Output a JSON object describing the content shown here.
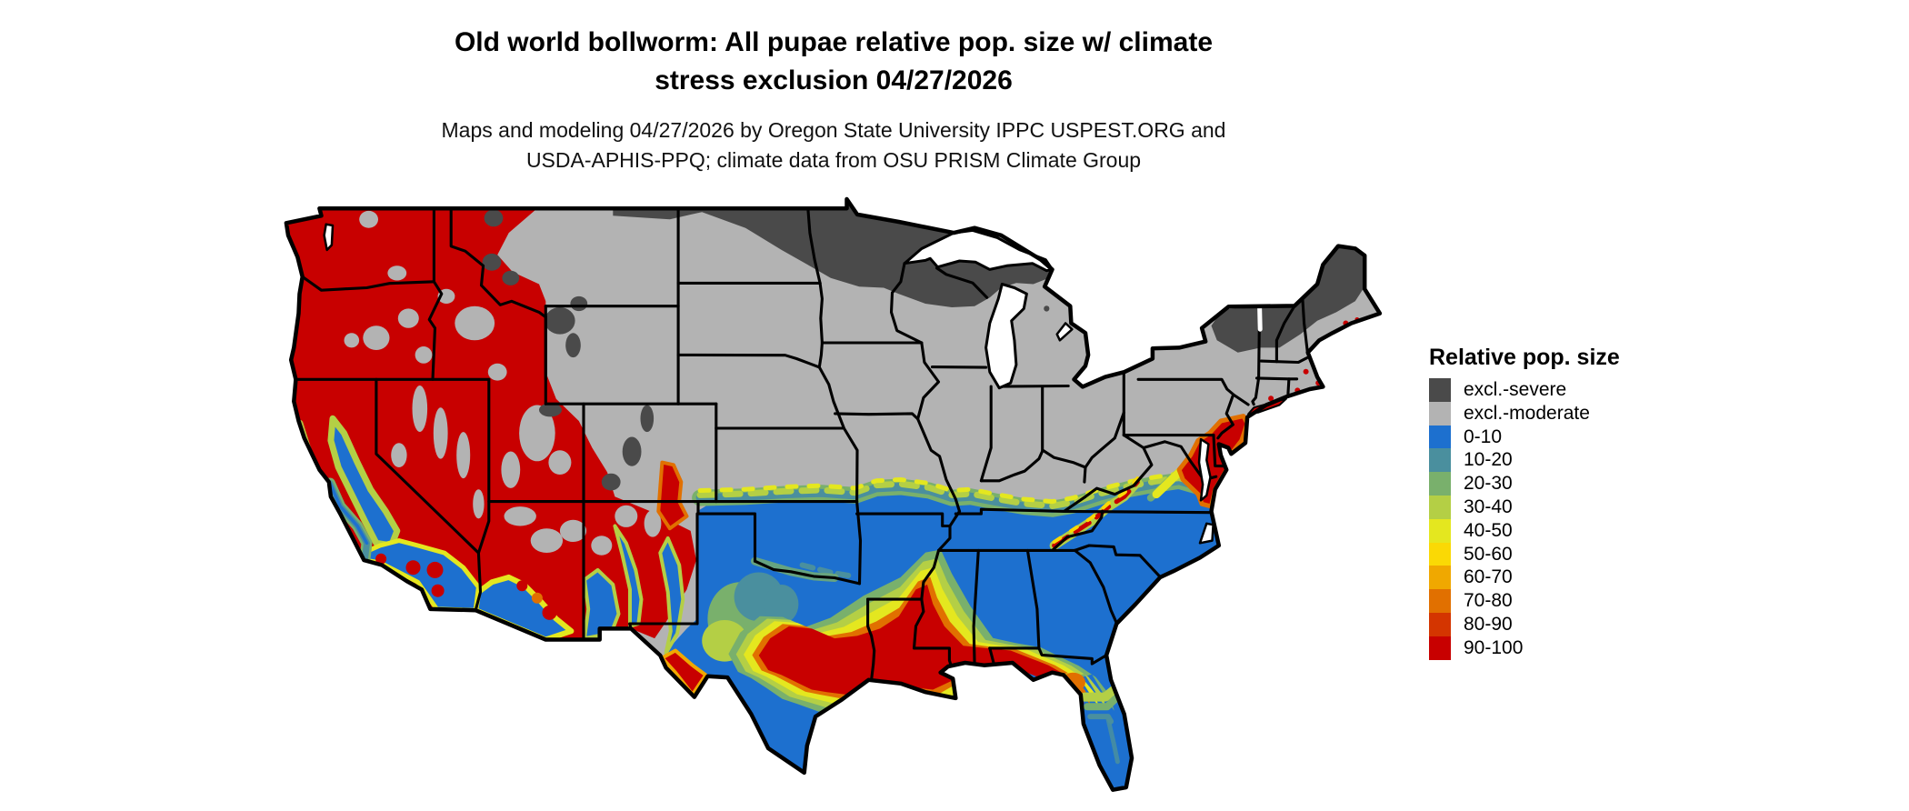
{
  "title": {
    "line1": "Old world bollworm: All pupae relative pop. size w/ climate",
    "line2": "stress exclusion 04/27/2026"
  },
  "subtitle": {
    "line1": "Maps and modeling 04/27/2026 by Oregon State University IPPC USPEST.ORG and",
    "line2": "USDA-APHIS-PPQ; climate data from OSU PRISM Climate Group"
  },
  "legend": {
    "title": "Relative pop. size",
    "items": [
      {
        "label": "excl.-severe",
        "color": "#4a4a4a"
      },
      {
        "label": "excl.-moderate",
        "color": "#b3b3b3"
      },
      {
        "label": "0-10",
        "color": "#1d70cf"
      },
      {
        "label": "10-20",
        "color": "#4a8f9e"
      },
      {
        "label": "20-30",
        "color": "#79b06c"
      },
      {
        "label": "30-40",
        "color": "#b4cf45"
      },
      {
        "label": "40-50",
        "color": "#e4e71f"
      },
      {
        "label": "50-60",
        "color": "#fad905"
      },
      {
        "label": "60-70",
        "color": "#f0a800"
      },
      {
        "label": "70-80",
        "color": "#e17000"
      },
      {
        "label": "80-90",
        "color": "#d43500"
      },
      {
        "label": "90-100",
        "color": "#c80000"
      }
    ]
  },
  "map": {
    "background": "#ffffff",
    "land_default": "#b3b3b3",
    "border_color": "#000000",
    "water_color": "#ffffff"
  }
}
